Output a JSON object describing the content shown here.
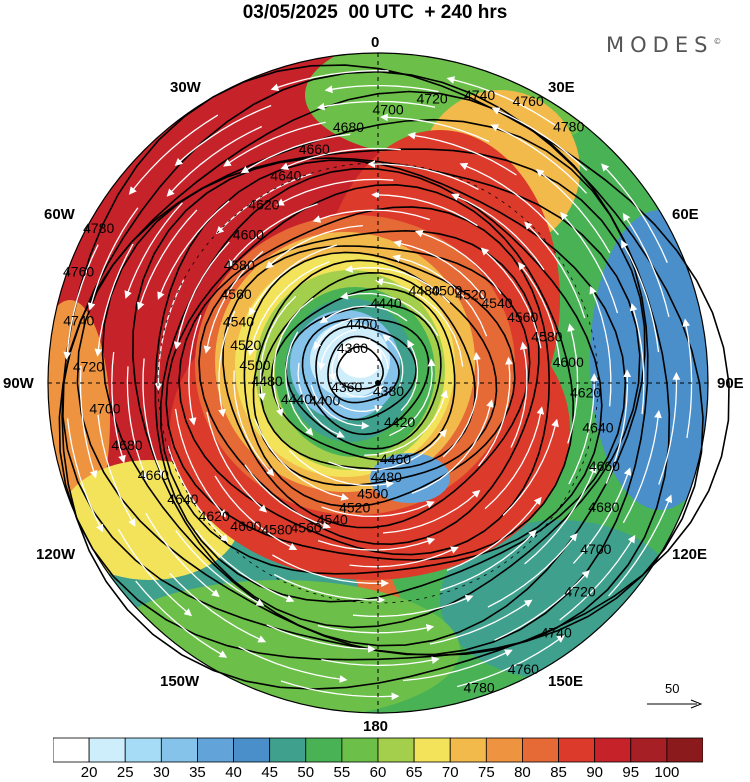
{
  "title": "03/05/2025  00 UTC  + 240 hrs",
  "brand": "MODES",
  "brand_mark": "©",
  "longitude_labels": {
    "lon_0": "0",
    "lon_30e": "30E",
    "lon_60e": "60E",
    "lon_90e": "90E",
    "lon_120e": "120E",
    "lon_150e": "150E",
    "lon_180": "180",
    "lon_150w": "150W",
    "lon_120w": "120W",
    "lon_90w": "90W",
    "lon_60w": "60W",
    "lon_30w": "30W"
  },
  "height_contour_labels": [
    "4360",
    "4380",
    "4400",
    "4420",
    "4440",
    "4460",
    "4480",
    "4500",
    "4520",
    "4540",
    "4560",
    "4580",
    "4600",
    "4620",
    "4640",
    "4660",
    "4680",
    "4700",
    "4720",
    "4740",
    "4760",
    "4780"
  ],
  "vector_reference": {
    "label": "50",
    "icon": "arrow-right-icon"
  },
  "colorbar": {
    "labels": [
      "20",
      "25",
      "30",
      "35",
      "40",
      "45",
      "50",
      "55",
      "60",
      "65",
      "70",
      "75",
      "80",
      "85",
      "90",
      "95",
      "100"
    ],
    "colors": [
      "#ffffff",
      "#cfeefc",
      "#a6dcf6",
      "#86c3ea",
      "#62a4d9",
      "#4a8fca",
      "#3fa08d",
      "#49b255",
      "#6cc04a",
      "#a4cf4c",
      "#f3e35a",
      "#f2b94b",
      "#ee9440",
      "#e66a35",
      "#dc3a2b",
      "#c6222a",
      "#a61f25",
      "#8b1a1d"
    ]
  }
}
